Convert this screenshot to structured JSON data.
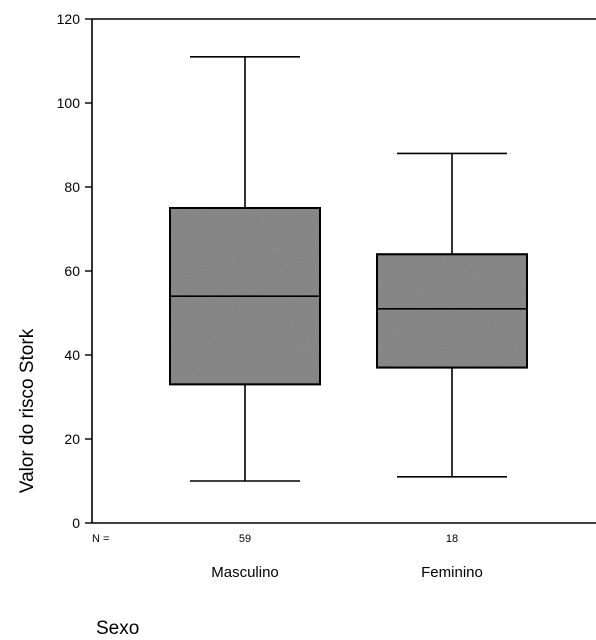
{
  "chart_data": {
    "type": "boxplot",
    "ylabel": "Valor do risco Stork",
    "xlabel": "Sexo",
    "ylim": [
      0,
      120
    ],
    "yticks": [
      0,
      20,
      40,
      60,
      80,
      100,
      120
    ],
    "n_prefix": "N =",
    "grid": false,
    "box_color": "#8c8c8c",
    "categories": [
      "Masculino",
      "Feminino"
    ],
    "boxes": [
      {
        "category": "Masculino",
        "n": "59",
        "min": 10,
        "q1": 33,
        "median": 54,
        "q3": 75,
        "max": 111
      },
      {
        "category": "Feminino",
        "n": "18",
        "min": 11,
        "q1": 37,
        "median": 51,
        "q3": 64,
        "max": 88
      }
    ]
  }
}
